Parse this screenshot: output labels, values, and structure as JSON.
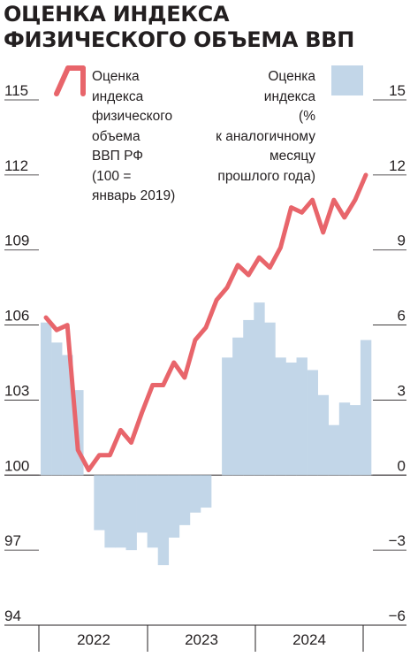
{
  "title": "ОЦЕНКА ИНДЕКСА ФИЗИЧЕСКОГО ОБЪЕМА ВВП",
  "legend": {
    "line_label": [
      "Оценка",
      "индекса",
      "физического",
      "объема",
      "ВВП РФ",
      "(100 =",
      "январь 2019)"
    ],
    "bar_label": [
      "Оценка",
      "индекса",
      "(%",
      "к аналогичному",
      "месяцу",
      "прошлого года)"
    ]
  },
  "chart_data": {
    "type": "line+bar",
    "left_axis": {
      "ylim": [
        94,
        115
      ],
      "ticks": [
        115,
        112,
        109,
        106,
        103,
        100,
        97,
        94
      ],
      "tick_labels": [
        "115",
        "112",
        "109",
        "106",
        "103",
        "100",
        "97",
        "94"
      ]
    },
    "right_axis": {
      "ylim": [
        -6,
        15
      ],
      "ticks": [
        15,
        12,
        9,
        6,
        3,
        0,
        -3,
        -6
      ],
      "tick_labels": [
        "15",
        "12",
        "9",
        "6",
        "3",
        "0",
        "−3",
        "−6"
      ]
    },
    "x_labels": [
      "2022",
      "2023",
      "2024"
    ],
    "months": 31,
    "line_series": {
      "axis": "left",
      "color": "#e8656b",
      "values": [
        106.3,
        105.8,
        106.0,
        101.0,
        100.2,
        100.8,
        100.8,
        101.8,
        101.3,
        102.5,
        103.6,
        103.6,
        104.5,
        103.9,
        105.4,
        105.9,
        107.0,
        107.5,
        108.4,
        108.0,
        108.7,
        108.3,
        109.1,
        110.7,
        110.5,
        111.0,
        109.7,
        111.0,
        110.3,
        111.0,
        112.0
      ]
    },
    "bar_series": {
      "axis": "right",
      "color": "#c2d6e8",
      "values": [
        6.1,
        5.3,
        4.8,
        3.4,
        0.0,
        -2.2,
        -2.9,
        -2.9,
        -3.0,
        -2.3,
        -2.9,
        -3.6,
        -2.5,
        -2.0,
        -1.5,
        -1.3,
        0.0,
        4.7,
        5.5,
        6.2,
        6.9,
        6.1,
        4.7,
        4.5,
        4.7,
        4.2,
        3.2,
        2.0,
        2.9,
        2.8,
        5.4
      ]
    }
  }
}
